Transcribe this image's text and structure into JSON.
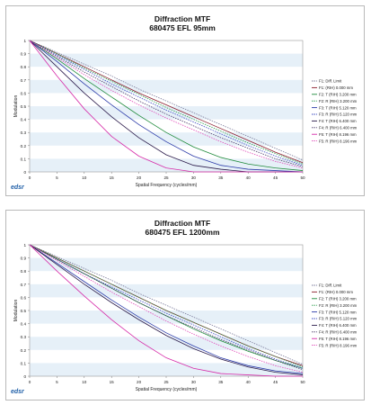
{
  "chart_data": [
    {
      "type": "line",
      "title": "Diffraction MTF",
      "subtitle": "680475    EFL 95mm",
      "xlabel": "Spatial Frequency (cycles/mm)",
      "ylabel": "Modulation",
      "xlim": [
        0,
        50
      ],
      "ylim": [
        0,
        1
      ],
      "xticks": [
        "0",
        "5",
        "10",
        "15",
        "20",
        "25",
        "30",
        "35",
        "40",
        "45",
        "50"
      ],
      "yticks": [
        "0",
        "0.1",
        "0.2",
        "0.3",
        "0.4",
        "0.5",
        "0.6",
        "0.7",
        "0.8",
        "0.9",
        "1"
      ],
      "grid": "alternating horizontal bands",
      "legend_position": "right",
      "logo_text": "edsr",
      "x": [
        0,
        5,
        10,
        15,
        20,
        25,
        30,
        35,
        40,
        45,
        50
      ],
      "series": [
        {
          "name": "F1: Diff. Limit",
          "color": "#7a7a9a",
          "dash": true,
          "values": [
            1,
            0.91,
            0.82,
            0.73,
            0.63,
            0.54,
            0.45,
            0.36,
            0.27,
            0.18,
            0.09
          ]
        },
        {
          "name": "F1: (RIH) 0.000 mm",
          "color": "#8b1c2c",
          "dash": false,
          "values": [
            1,
            0.9,
            0.8,
            0.7,
            0.6,
            0.51,
            0.42,
            0.33,
            0.24,
            0.15,
            0.07
          ]
        },
        {
          "name": "F2: T (RIH) 3.200 mm",
          "color": "#1e8a3a",
          "dash": false,
          "values": [
            1,
            0.86,
            0.71,
            0.57,
            0.43,
            0.3,
            0.19,
            0.11,
            0.06,
            0.03,
            0.01
          ]
        },
        {
          "name": "F2: R (RIH) 3.200 mm",
          "color": "#2a9a4a",
          "dash": true,
          "values": [
            1,
            0.9,
            0.79,
            0.69,
            0.59,
            0.49,
            0.4,
            0.31,
            0.22,
            0.14,
            0.06
          ]
        },
        {
          "name": "F3: T (RIH) 5.120 mm",
          "color": "#2b3aa8",
          "dash": false,
          "values": [
            1,
            0.84,
            0.67,
            0.51,
            0.36,
            0.23,
            0.12,
            0.05,
            0.02,
            0.01,
            0
          ]
        },
        {
          "name": "F3: R (RIH) 5.120 mm",
          "color": "#3a4ac0",
          "dash": true,
          "values": [
            1,
            0.89,
            0.78,
            0.67,
            0.57,
            0.47,
            0.38,
            0.29,
            0.2,
            0.12,
            0.05
          ]
        },
        {
          "name": "F4: T (RIH) 6.400 mm",
          "color": "#2a1a4a",
          "dash": false,
          "values": [
            1,
            0.8,
            0.6,
            0.42,
            0.26,
            0.13,
            0.05,
            0.02,
            0,
            0,
            0
          ]
        },
        {
          "name": "F4: R (RIH) 6.400 mm",
          "color": "#4a3a6a",
          "dash": true,
          "values": [
            1,
            0.88,
            0.76,
            0.65,
            0.54,
            0.44,
            0.35,
            0.26,
            0.18,
            0.1,
            0.04
          ]
        },
        {
          "name": "F5: T (RIH) 8.196 mm",
          "color": "#d62aa8",
          "dash": false,
          "values": [
            1,
            0.73,
            0.48,
            0.27,
            0.12,
            0.03,
            0,
            0,
            0,
            0,
            0
          ]
        },
        {
          "name": "F5: R (RIH) 8.196 mm",
          "color": "#e04ab8",
          "dash": true,
          "values": [
            1,
            0.87,
            0.74,
            0.62,
            0.51,
            0.41,
            0.32,
            0.23,
            0.15,
            0.08,
            0.03
          ]
        }
      ]
    },
    {
      "type": "line",
      "title": "Diffraction MTF",
      "subtitle": "680475   EFL 1200mm",
      "xlabel": "Spatial Frequency (cycles/mm)",
      "ylabel": "Modulation",
      "xlim": [
        0,
        50
      ],
      "ylim": [
        0,
        1
      ],
      "xticks": [
        "0",
        "5",
        "10",
        "15",
        "20",
        "25",
        "30",
        "35",
        "40",
        "45",
        "50"
      ],
      "yticks": [
        "0",
        "0.1",
        "0.2",
        "0.3",
        "0.4",
        "0.5",
        "0.6",
        "0.7",
        "0.8",
        "0.9",
        "1"
      ],
      "grid": "alternating horizontal bands",
      "legend_position": "right",
      "logo_text": "edsr",
      "x": [
        0,
        5,
        10,
        15,
        20,
        25,
        30,
        35,
        40,
        45,
        50
      ],
      "series": [
        {
          "name": "F1: Diff. Limit",
          "color": "#7a7a9a",
          "dash": true,
          "values": [
            1,
            0.91,
            0.82,
            0.73,
            0.63,
            0.54,
            0.45,
            0.36,
            0.27,
            0.18,
            0.09
          ]
        },
        {
          "name": "F1: (RIH) 0.000 mm",
          "color": "#8b1c2c",
          "dash": false,
          "values": [
            1,
            0.9,
            0.8,
            0.7,
            0.6,
            0.5,
            0.41,
            0.32,
            0.23,
            0.15,
            0.08
          ]
        },
        {
          "name": "F2: T (RIH) 3.200 mm",
          "color": "#1e8a3a",
          "dash": false,
          "values": [
            1,
            0.89,
            0.78,
            0.67,
            0.56,
            0.46,
            0.36,
            0.27,
            0.19,
            0.12,
            0.06
          ]
        },
        {
          "name": "F2: R (RIH) 3.200 mm",
          "color": "#2a9a4a",
          "dash": true,
          "values": [
            1,
            0.9,
            0.8,
            0.7,
            0.6,
            0.5,
            0.41,
            0.32,
            0.23,
            0.15,
            0.07
          ]
        },
        {
          "name": "F3: T (RIH) 5.120 mm",
          "color": "#2b3aa8",
          "dash": false,
          "values": [
            1,
            0.86,
            0.72,
            0.58,
            0.45,
            0.33,
            0.23,
            0.14,
            0.08,
            0.04,
            0.02
          ]
        },
        {
          "name": "F3: R (RIH) 5.120 mm",
          "color": "#3a4ac0",
          "dash": true,
          "values": [
            1,
            0.89,
            0.78,
            0.68,
            0.58,
            0.48,
            0.39,
            0.3,
            0.21,
            0.13,
            0.06
          ]
        },
        {
          "name": "F4: T (RIH) 6.400 mm",
          "color": "#2a1a4a",
          "dash": false,
          "values": [
            1,
            0.85,
            0.7,
            0.56,
            0.43,
            0.31,
            0.21,
            0.13,
            0.07,
            0.03,
            0.01
          ]
        },
        {
          "name": "F4: R (RIH) 6.400 mm",
          "color": "#4a3a6a",
          "dash": true,
          "values": [
            1,
            0.89,
            0.78,
            0.67,
            0.56,
            0.46,
            0.37,
            0.28,
            0.2,
            0.12,
            0.05
          ]
        },
        {
          "name": "F5: T (RIH) 8.196 mm",
          "color": "#d62aa8",
          "dash": false,
          "values": [
            1,
            0.8,
            0.61,
            0.43,
            0.27,
            0.14,
            0.06,
            0.02,
            0.01,
            0,
            0
          ]
        },
        {
          "name": "F5: R (RIH) 8.196 mm",
          "color": "#e04ab8",
          "dash": true,
          "values": [
            1,
            0.88,
            0.76,
            0.64,
            0.53,
            0.42,
            0.32,
            0.23,
            0.15,
            0.08,
            0.03
          ]
        }
      ]
    }
  ]
}
